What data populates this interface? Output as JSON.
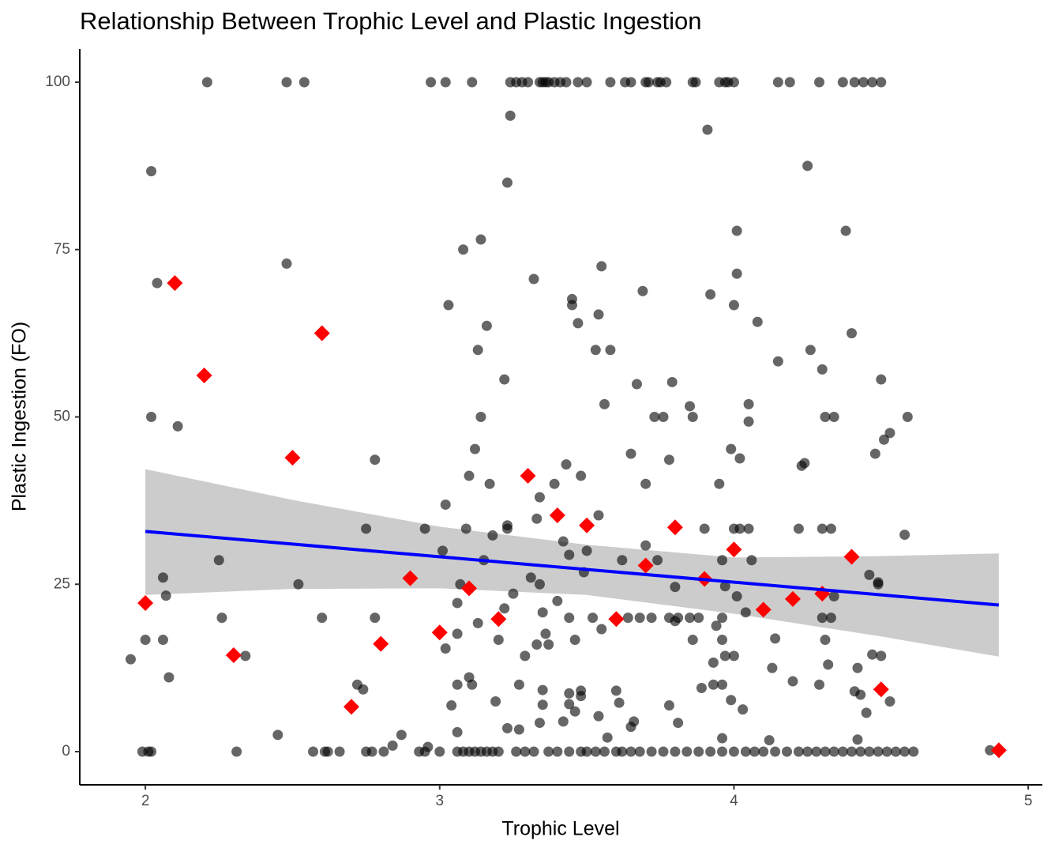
{
  "chart_data": {
    "type": "scatter",
    "title": "Relationship Between Trophic Level and Plastic Ingestion",
    "x_label": "Trophic Level",
    "y_label": "Plastic Ingestion (FO)",
    "xlim": [
      1.777,
      5.048
    ],
    "ylim": [
      -4.96,
      104.96
    ],
    "xticks": [
      2,
      3,
      4,
      5
    ],
    "yticks": [
      0,
      25,
      50,
      75,
      100
    ],
    "grid": false,
    "series": [
      {
        "color": "#000000",
        "alpha": 0.6,
        "marker": "circle",
        "x": [
          1.95,
          1.99,
          2.01,
          2.02,
          2.0,
          2.02,
          2.02,
          2.04,
          2.06,
          2.06,
          2.07,
          2.08,
          2.11,
          2.21,
          2.25,
          2.26,
          2.31,
          2.34,
          2.45,
          2.48,
          2.48,
          2.52,
          2.54,
          2.57,
          2.6,
          2.61,
          2.62,
          2.66,
          2.72,
          2.74,
          2.75,
          2.75,
          2.77,
          2.78,
          2.78,
          2.81,
          2.84,
          2.87,
          2.93,
          2.95,
          2.96,
          2.97,
          3.01,
          3.02,
          3.02,
          3.02,
          3.03,
          3.04,
          3.06,
          3.06,
          3.06,
          3.06,
          3.07,
          3.08,
          3.09,
          3.1,
          3.1,
          3.11,
          3.11,
          3.12,
          3.13,
          3.13,
          3.14,
          3.14,
          3.15,
          3.16,
          3.17,
          3.18,
          3.19,
          3.2,
          3.22,
          3.22,
          3.23,
          3.23,
          3.23,
          3.23,
          3.24,
          3.24,
          3.25,
          3.27,
          3.27,
          3.28,
          3.29,
          3.31,
          3.32,
          3.33,
          3.33,
          3.34,
          3.34,
          3.34,
          3.35,
          3.35,
          3.35,
          3.36,
          3.37,
          3.37,
          3.39,
          3.4,
          3.42,
          3.42,
          3.43,
          3.44,
          3.44,
          3.44,
          3.44,
          3.45,
          3.45,
          3.46,
          3.46,
          3.47,
          3.48,
          3.48,
          3.48,
          3.49,
          3.5,
          3.5,
          3.52,
          3.53,
          3.54,
          3.54,
          3.54,
          3.55,
          3.55,
          3.56,
          3.57,
          3.58,
          3.58,
          3.6,
          3.61,
          3.62,
          3.63,
          3.64,
          3.65,
          3.65,
          3.66,
          3.67,
          3.68,
          3.69,
          3.7,
          3.7,
          3.71,
          3.72,
          3.73,
          3.74,
          3.76,
          3.77,
          3.78,
          3.78,
          3.78,
          3.79,
          3.8,
          3.8,
          3.81,
          3.81,
          3.85,
          3.85,
          3.86,
          3.86,
          3.87,
          3.88,
          3.89,
          3.9,
          3.91,
          3.92,
          3.93,
          3.93,
          3.94,
          3.95,
          3.96,
          3.96,
          3.96,
          3.96,
          3.96,
          3.97,
          3.97,
          3.98,
          3.99,
          3.99,
          4.0,
          4.0,
          4.0,
          4.01,
          4.01,
          4.01,
          4.02,
          4.02,
          4.03,
          4.04,
          4.05,
          4.05,
          4.05,
          4.06,
          4.08,
          4.12,
          4.13,
          4.14,
          4.15,
          4.15,
          4.19,
          4.2,
          4.22,
          4.23,
          4.24,
          4.25,
          4.26,
          4.29,
          4.29,
          4.3,
          4.3,
          4.3,
          4.31,
          4.31,
          4.32,
          4.33,
          4.33,
          4.34,
          4.34,
          4.38,
          4.4,
          4.41,
          4.41,
          4.42,
          4.42,
          4.43,
          4.44,
          4.45,
          4.46,
          4.47,
          4.48,
          4.49,
          4.49,
          4.5,
          4.5,
          4.5,
          4.51,
          4.53,
          4.53,
          4.59,
          4.58,
          4.87,
          2.95,
          3.0,
          3.06,
          3.08,
          3.1,
          3.12,
          3.14,
          3.16,
          3.18,
          3.2,
          3.26,
          3.29,
          3.32,
          3.37,
          3.4,
          3.44,
          3.48,
          3.5,
          3.53,
          3.56,
          3.6,
          3.62,
          3.65,
          3.68,
          3.72,
          3.76,
          3.8,
          3.84,
          3.88,
          3.92,
          3.96,
          4.0,
          4.04,
          4.07,
          4.1,
          4.14,
          4.18,
          4.22,
          4.25,
          4.28,
          4.31,
          4.34,
          4.37,
          4.4,
          4.43,
          4.46,
          4.49,
          4.52,
          4.55,
          4.58,
          4.61,
          3.26,
          3.3,
          3.34,
          3.35,
          3.36,
          3.39,
          3.41,
          3.43,
          3.47,
          3.65,
          3.7,
          3.74,
          3.75,
          3.86,
          3.95,
          3.97,
          4.0,
          4.37,
          4.47
        ],
        "values": [
          13.8,
          0,
          0,
          0,
          16.7,
          86.7,
          50,
          70,
          26,
          16.7,
          23.3,
          11.1,
          48.6,
          100,
          28.6,
          20,
          0,
          14.3,
          2.5,
          72.9,
          100,
          25,
          100,
          0,
          20,
          0,
          0,
          0,
          10,
          9.3,
          33.3,
          0,
          0,
          20,
          43.6,
          0,
          0.9,
          2.5,
          0,
          33.3,
          0.7,
          100,
          30,
          15.4,
          36.9,
          100,
          66.7,
          6.9,
          17.6,
          10,
          2.9,
          22.2,
          25,
          75,
          33.3,
          11.1,
          41.2,
          10,
          100,
          45.2,
          19.2,
          60,
          76.5,
          50,
          28.6,
          63.6,
          40,
          32.3,
          7.5,
          16.7,
          21.4,
          55.6,
          33.3,
          33.8,
          3.5,
          85,
          95,
          100,
          23.6,
          3.3,
          10,
          100,
          14.3,
          26,
          70.6,
          34.8,
          16,
          4.3,
          38,
          25,
          9.2,
          20.8,
          7,
          17.6,
          16,
          100,
          40,
          22.5,
          31.4,
          4.5,
          42.9,
          20,
          8.7,
          7.1,
          29.4,
          67.6,
          66.7,
          16.7,
          6,
          64,
          8.3,
          9.1,
          41.2,
          26.8,
          30,
          100,
          20,
          60,
          5.3,
          65.3,
          35.3,
          72.5,
          18.3,
          51.9,
          2.1,
          100,
          60,
          9.1,
          7.3,
          28.6,
          100,
          20,
          44.5,
          3.7,
          4.5,
          54.9,
          20,
          68.8,
          40,
          30.8,
          100,
          20,
          50,
          28.6,
          50,
          100,
          20,
          43.6,
          6.9,
          55.2,
          19.5,
          24.6,
          4.3,
          20,
          20,
          51.6,
          50,
          16.7,
          100,
          20,
          9.5,
          33.3,
          92.9,
          68.3,
          10,
          13.3,
          18.8,
          40,
          10,
          20,
          28.6,
          2,
          16.7,
          14.3,
          24.7,
          100,
          7.7,
          45.2,
          14.3,
          33.3,
          66.7,
          71.4,
          77.8,
          23.2,
          33.3,
          43.8,
          6.3,
          20.8,
          49.3,
          33.3,
          51.9,
          28.6,
          64.2,
          1.7,
          12.5,
          16.9,
          58.3,
          100,
          100,
          10.5,
          33.3,
          42.7,
          43.1,
          87.5,
          60,
          10,
          100,
          57.1,
          33.3,
          20,
          50,
          16.7,
          13,
          20,
          33.3,
          23.2,
          50,
          77.8,
          62.5,
          100,
          9,
          12.5,
          1.8,
          8.5,
          100,
          5.8,
          26.4,
          14.5,
          44.5,
          25,
          25.3,
          14.3,
          55.6,
          100,
          46.6,
          47.6,
          7.5,
          50,
          32.4,
          0.2,
          0,
          0,
          0,
          0,
          0,
          0,
          0,
          0,
          0,
          0,
          0,
          0,
          0,
          0,
          0,
          0,
          0,
          0,
          0,
          0,
          0,
          0,
          0,
          0,
          0,
          0,
          0,
          0,
          0,
          0,
          0,
          0,
          0,
          0,
          0,
          0,
          0,
          0,
          0,
          0,
          0,
          0,
          0,
          0,
          0,
          0,
          0,
          0,
          0,
          0,
          0,
          100,
          100,
          100,
          100,
          100,
          100,
          100,
          100,
          100,
          100,
          100,
          100,
          100,
          100,
          100,
          100,
          100,
          100,
          100
        ]
      },
      {
        "color": "#ff0000",
        "alpha": 1,
        "marker": "diamond",
        "x": [
          2.0,
          2.1,
          2.2,
          2.3,
          2.5,
          2.6,
          2.7,
          2.8,
          2.9,
          3.0,
          3.1,
          3.2,
          3.3,
          3.4,
          3.5,
          3.6,
          3.7,
          3.8,
          3.9,
          4.0,
          4.1,
          4.2,
          4.3,
          4.4,
          4.5,
          4.9
        ],
        "values": [
          22.2,
          70,
          56.2,
          14.4,
          43.9,
          62.5,
          6.7,
          16.1,
          25.9,
          17.8,
          24.4,
          19.8,
          41.2,
          35.3,
          33.8,
          19.8,
          27.8,
          33.5,
          25.8,
          30.2,
          21.2,
          22.8,
          23.6,
          29.1,
          9.3,
          0.2
        ]
      }
    ],
    "ribbon": {
      "color": "#cccccc",
      "x": [
        2.0,
        2.5,
        3.0,
        3.5,
        4.0,
        4.5,
        4.9
      ],
      "lower": [
        23.4,
        24.3,
        24.4,
        23.4,
        20.6,
        17.2,
        14.2
      ],
      "upper": [
        42.2,
        37.6,
        33.6,
        30.9,
        29.0,
        29.2,
        29.6
      ]
    },
    "fit": {
      "color": "#0000ff",
      "x": [
        2.0,
        4.9
      ],
      "values": [
        32.9,
        21.9
      ]
    }
  }
}
